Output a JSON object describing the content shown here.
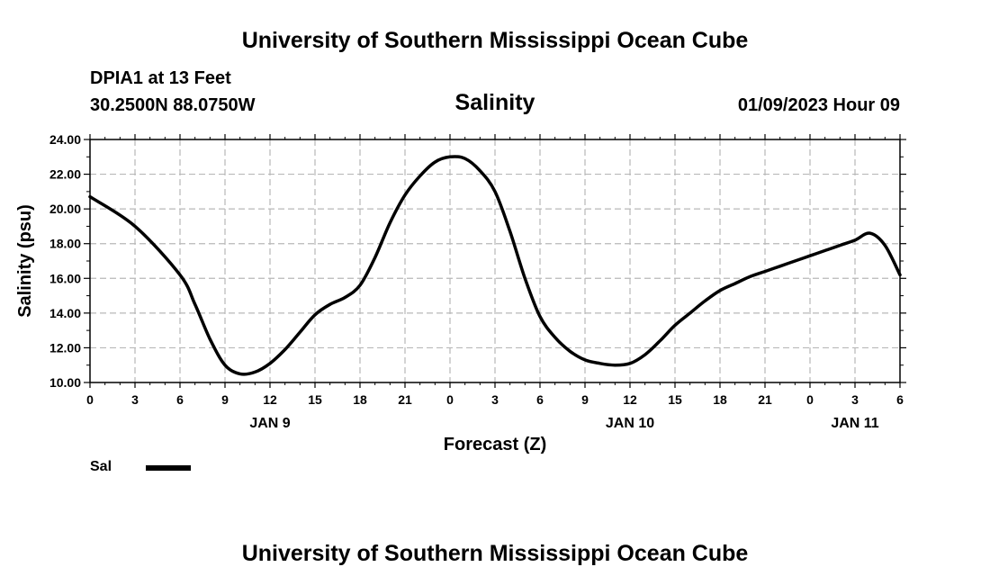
{
  "page": {
    "title_top": "University of Southern Mississippi Ocean Cube",
    "title_bottom": "University of Southern Mississippi Ocean Cube"
  },
  "station": {
    "name": "DPIA1 at 13 Feet",
    "coords": "30.2500N  88.0750W",
    "issued": "01/09/2023 Hour 09"
  },
  "legend": {
    "label": "Sal",
    "color": "#000000"
  },
  "chart_data": {
    "type": "line",
    "title": "Salinity",
    "xlabel": "Forecast (Z)",
    "ylabel": "Salinity (psu)",
    "xlim": [
      0,
      54
    ],
    "ylim": [
      10,
      24
    ],
    "y_ticks": [
      "10.00",
      "12.00",
      "14.00",
      "16.00",
      "18.00",
      "20.00",
      "22.00",
      "24.00"
    ],
    "x_tick_labels": [
      "0",
      "3",
      "6",
      "9",
      "12",
      "15",
      "18",
      "21",
      "0",
      "3",
      "6",
      "9",
      "12",
      "15",
      "18",
      "21",
      "0",
      "3",
      "6"
    ],
    "day_labels": [
      {
        "label": "JAN 9",
        "x": 12
      },
      {
        "label": "JAN 10",
        "x": 36
      },
      {
        "label": "JAN 11",
        "x": 51
      }
    ],
    "grid": true,
    "series": [
      {
        "name": "Sal",
        "color": "#000000",
        "x": [
          0,
          3,
          6,
          7,
          8,
          9,
          10,
          11,
          12,
          13,
          14,
          15,
          16,
          17,
          18,
          19,
          20,
          21,
          22,
          23,
          24,
          25,
          26,
          27,
          28,
          29,
          30,
          31,
          32,
          33,
          34,
          35,
          36,
          37,
          38,
          39,
          40,
          41,
          42,
          43,
          44,
          45,
          46,
          47,
          48,
          49,
          50,
          51,
          52,
          53,
          54
        ],
        "values": [
          20.7,
          19.0,
          16.2,
          14.5,
          12.5,
          11.0,
          10.5,
          10.6,
          11.1,
          11.9,
          12.9,
          13.9,
          14.5,
          14.9,
          15.6,
          17.2,
          19.2,
          20.8,
          21.9,
          22.7,
          23.0,
          22.9,
          22.2,
          21.0,
          18.7,
          16.0,
          13.8,
          12.6,
          11.8,
          11.3,
          11.1,
          11.0,
          11.1,
          11.6,
          12.4,
          13.3,
          14.0,
          14.7,
          15.3,
          15.7,
          16.1,
          16.4,
          16.7,
          17.0,
          17.3,
          17.6,
          17.9,
          18.2,
          18.6,
          17.9,
          16.2
        ]
      }
    ]
  }
}
